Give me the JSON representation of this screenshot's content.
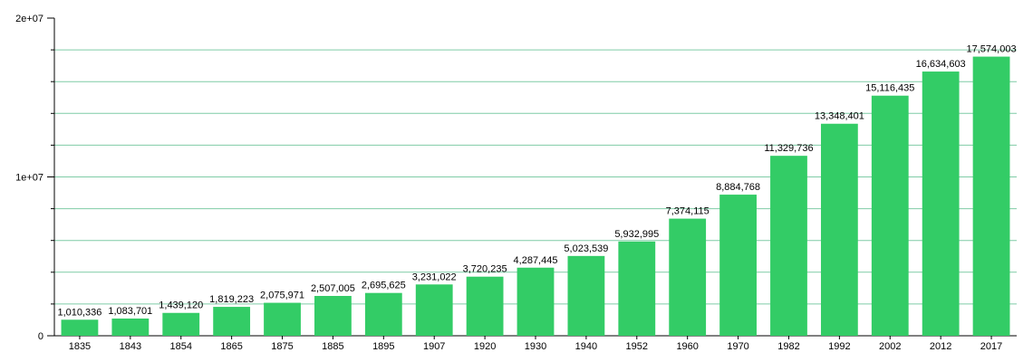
{
  "chart_data": {
    "type": "bar",
    "title": "",
    "xlabel": "",
    "ylabel": "",
    "categories": [
      "1835",
      "1843",
      "1854",
      "1865",
      "1875",
      "1885",
      "1895",
      "1907",
      "1920",
      "1930",
      "1940",
      "1952",
      "1960",
      "1970",
      "1982",
      "1992",
      "2002",
      "2012",
      "2017"
    ],
    "values": [
      1010336,
      1083701,
      1439120,
      1819223,
      2075971,
      2507005,
      2695625,
      3231022,
      3720235,
      4287445,
      5023539,
      5932995,
      7374115,
      8884768,
      11329736,
      13348401,
      15116435,
      16634603,
      17574003
    ],
    "value_labels": [
      "1,010,336",
      "1,083,701",
      "1,439,120",
      "1,819,223",
      "2,075,971",
      "2,507,005",
      "2,695,625",
      "3,231,022",
      "3,720,235",
      "4,287,445",
      "5,023,539",
      "5,932,995",
      "7,374,115",
      "8,884,768",
      "11,329,736",
      "13,348,401",
      "15,116,435",
      "16,634,603",
      "17,574,003"
    ],
    "ylim": [
      0,
      20000000
    ],
    "y_tick_labels": [
      {
        "value": 0,
        "label": "0"
      },
      {
        "value": 10000000,
        "label": "1e+07"
      },
      {
        "value": 20000000,
        "label": "2e+07"
      }
    ],
    "grid": true,
    "bar_color": "#33cc66",
    "grid_color": "#7fcca6"
  }
}
